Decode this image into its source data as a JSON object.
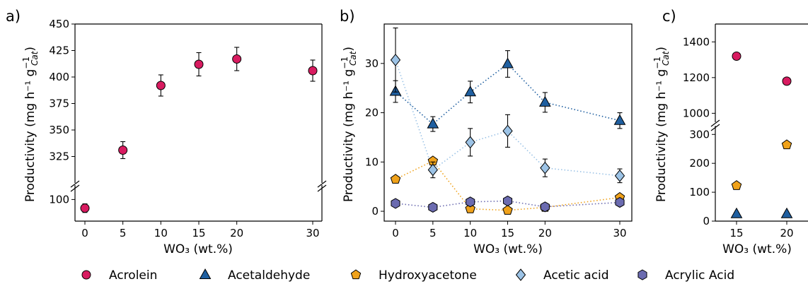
{
  "panels": [
    {
      "letter": "a)",
      "ylabel": "Productivity (mg h⁻¹ g",
      "ylabel_sub": "Cat",
      "ylabel_sup": "−1",
      "ylabel_end": ")",
      "xlabel": "WO₃ (wt.%)"
    },
    {
      "letter": "b)",
      "ylabel": "Productivity (mg h⁻¹ g",
      "ylabel_sub": "Cat",
      "ylabel_sup": "−1",
      "ylabel_end": ")",
      "xlabel": "WO₃ (wt.%)"
    },
    {
      "letter": "c)",
      "ylabel": "Productivity (mg h⁻¹ g",
      "ylabel_sub": "Cat",
      "ylabel_sup": "−1",
      "ylabel_end": ")",
      "xlabel": "WO₃ (wt.%)"
    }
  ],
  "legend": [
    {
      "name": "Acrolein",
      "color": "#d81b60",
      "marker": "circle"
    },
    {
      "name": "Acetaldehyde",
      "color": "#1f5fa0",
      "marker": "triangle"
    },
    {
      "name": "Hydroxyacetone",
      "color": "#f0a21a",
      "marker": "pentagon"
    },
    {
      "name": "Acetic acid",
      "color": "#9cc3e6",
      "marker": "diamond"
    },
    {
      "name": "Acrylic Acid",
      "color": "#6b6bb0",
      "marker": "hexagon"
    }
  ],
  "chart_data": [
    {
      "panel": "a)",
      "type": "scatter",
      "xlabel": "WO₃ (wt.%)",
      "ylabel": "Productivity (mg h⁻¹ g_Cat⁻¹)",
      "broken_y_axis": true,
      "ylim_lower": [
        85,
        110
      ],
      "ylim_upper": [
        300,
        450
      ],
      "yticks_lower": [
        100
      ],
      "yticks_upper": [
        325,
        350,
        375,
        400,
        425,
        450
      ],
      "xticks": [
        0,
        5,
        10,
        15,
        20,
        30
      ],
      "series": [
        {
          "name": "Acrolein",
          "color": "#d81b60",
          "marker": "circle",
          "x": [
            0,
            5,
            10,
            15,
            20,
            30
          ],
          "y": [
            94,
            331,
            392,
            412,
            417,
            406
          ],
          "err": [
            3,
            8,
            10,
            11,
            11,
            10
          ]
        }
      ]
    },
    {
      "panel": "b)",
      "type": "line",
      "xlabel": "WO₃ (wt.%)",
      "ylabel": "Productivity (mg h⁻¹ g_Cat⁻¹)",
      "ylim": [
        -2,
        38
      ],
      "yticks": [
        0,
        10,
        20,
        30
      ],
      "xticks": [
        0,
        5,
        10,
        15,
        20,
        30
      ],
      "line_style": "dotted",
      "series": [
        {
          "name": "Acetaldehyde",
          "color": "#1f5fa0",
          "marker": "triangle",
          "x": [
            0,
            5,
            10,
            15,
            20,
            30
          ],
          "y": [
            24.3,
            17.7,
            24.2,
            29.9,
            22.1,
            18.4
          ],
          "err": [
            2.2,
            1.5,
            2.2,
            2.7,
            2.0,
            1.6
          ]
        },
        {
          "name": "Hydroxyacetone",
          "color": "#f0a21a",
          "marker": "pentagon",
          "x": [
            0,
            5,
            10,
            15,
            20,
            30
          ],
          "y": [
            6.5,
            10.2,
            0.5,
            0.2,
            0.8,
            2.8
          ],
          "err": [
            0.5,
            0.6,
            0.3,
            0.2,
            0.3,
            0.3
          ]
        },
        {
          "name": "Acetic acid",
          "color": "#9cc3e6",
          "marker": "diamond",
          "x": [
            0,
            5,
            10,
            15,
            20,
            30
          ],
          "y": [
            30.7,
            8.4,
            14.0,
            16.3,
            8.8,
            7.2
          ],
          "err": [
            6.5,
            1.6,
            2.8,
            3.3,
            1.8,
            1.4
          ]
        },
        {
          "name": "Acrylic Acid",
          "color": "#6b6bb0",
          "marker": "hexagon",
          "x": [
            0,
            5,
            10,
            15,
            20,
            30
          ],
          "y": [
            1.6,
            0.8,
            1.9,
            2.1,
            0.9,
            1.8
          ],
          "err": [
            0.4,
            0.3,
            0.5,
            0.6,
            0.3,
            0.4
          ]
        }
      ]
    },
    {
      "panel": "c)",
      "type": "scatter",
      "xlabel": "WO₃ (wt.%)",
      "ylabel": "Productivity (mg h⁻¹ g_Cat⁻¹)",
      "broken_y_axis": true,
      "ylim_lower": [
        0,
        330
      ],
      "ylim_upper": [
        950,
        1500
      ],
      "yticks_lower": [
        0,
        100,
        200,
        300
      ],
      "yticks_upper": [
        1000,
        1200,
        1400
      ],
      "xticks": [
        15,
        20
      ],
      "series": [
        {
          "name": "Acrolein",
          "color": "#d81b60",
          "marker": "circle",
          "x": [
            15,
            20
          ],
          "y": [
            1320,
            1180
          ]
        },
        {
          "name": "Hydroxyacetone",
          "color": "#f0a21a",
          "marker": "pentagon",
          "x": [
            15,
            20
          ],
          "y": [
            123,
            264
          ]
        },
        {
          "name": "Acetaldehyde",
          "color": "#1f5fa0",
          "marker": "triangle",
          "x": [
            15,
            20
          ],
          "y": [
            25,
            25
          ]
        }
      ]
    }
  ]
}
